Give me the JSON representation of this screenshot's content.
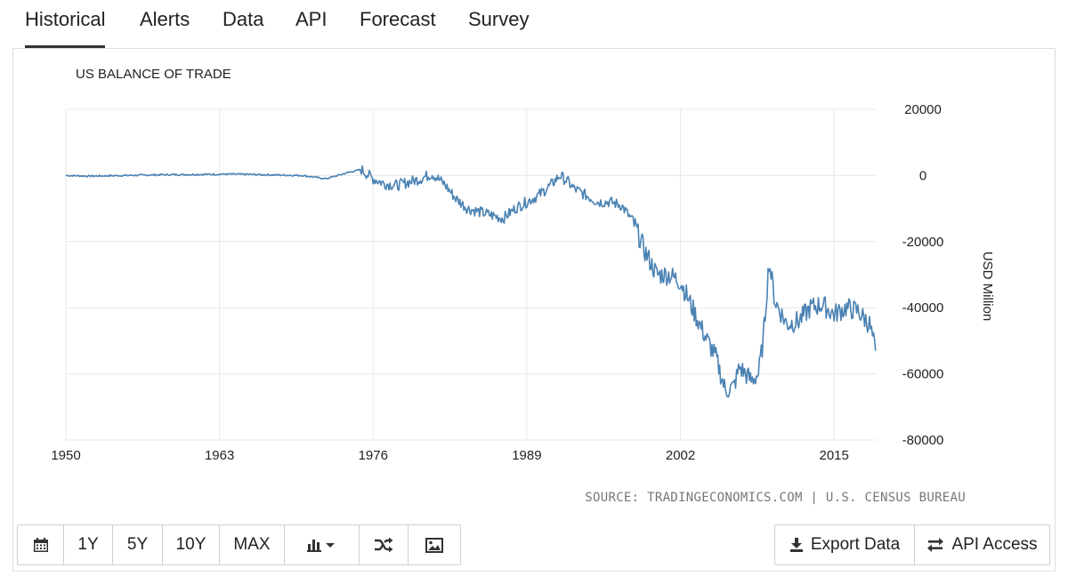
{
  "tabs": [
    {
      "label": "Historical",
      "active": true
    },
    {
      "label": "Alerts"
    },
    {
      "label": "Data"
    },
    {
      "label": "API"
    },
    {
      "label": "Forecast"
    },
    {
      "label": "Survey"
    }
  ],
  "toolbar": {
    "calendar_icon": "calendar-icon",
    "range_buttons": [
      "1Y",
      "5Y",
      "10Y",
      "MAX"
    ],
    "chart_type_icon": "bar-chart-icon",
    "compare_icon": "shuffle-icon",
    "image_icon": "image-icon",
    "export_label": "Export Data",
    "export_icon": "download-icon",
    "api_label": "API Access",
    "api_icon": "exchange-icon"
  },
  "source": "SOURCE: TRADINGECONOMICS.COM | U.S. CENSUS BUREAU",
  "chart_data": {
    "type": "line",
    "title": "US BALANCE OF TRADE",
    "xlabel": "",
    "ylabel": "USD Million",
    "x_ticks": [
      "1950",
      "1963",
      "1976",
      "1989",
      "2002",
      "2015"
    ],
    "y_ticks": [
      "20000",
      "0",
      "-20000",
      "-40000",
      "-60000",
      "-80000"
    ],
    "xlim": [
      1950,
      2018.6
    ],
    "ylim": [
      -80000,
      20000
    ],
    "grid": true,
    "legend": "none",
    "line_color": "#4a82b3",
    "series": [
      {
        "x": [
          1950,
          1952,
          1955,
          1958,
          1961,
          1964,
          1967,
          1970,
          1972,
          1974,
          1975,
          1976,
          1977,
          1978,
          1979,
          1980,
          1981,
          1982,
          1983,
          1984,
          1985,
          1986,
          1987,
          1988,
          1989,
          1990,
          1991,
          1991.8,
          1992.5,
          1993,
          1994,
          1995,
          1996,
          1997,
          1998,
          1999,
          2000,
          2001,
          2002,
          2003,
          2004,
          2005,
          2005.8,
          2006.5,
          2007,
          2008,
          2008.6,
          2009,
          2009.5,
          2010,
          2011,
          2012,
          2013,
          2014,
          2015,
          2016,
          2017,
          2018,
          2018.5
        ],
        "y": [
          0,
          -200,
          0,
          200,
          300,
          400,
          200,
          0,
          -1000,
          1000,
          1800,
          -1000,
          -2500,
          -3000,
          -2000,
          -1000,
          500,
          -2500,
          -7000,
          -10000,
          -11000,
          -12000,
          -13000,
          -10000,
          -8000,
          -6000,
          -3000,
          0,
          -2000,
          -4000,
          -6000,
          -8000,
          -8000,
          -9000,
          -14000,
          -23000,
          -30000,
          -30000,
          -32000,
          -40000,
          -48000,
          -55000,
          -65000,
          -64000,
          -58000,
          -62000,
          -60000,
          -50000,
          -26000,
          -38000,
          -45000,
          -44000,
          -40000,
          -39000,
          -42000,
          -40000,
          -41000,
          -45000,
          -53000
        ]
      }
    ]
  }
}
